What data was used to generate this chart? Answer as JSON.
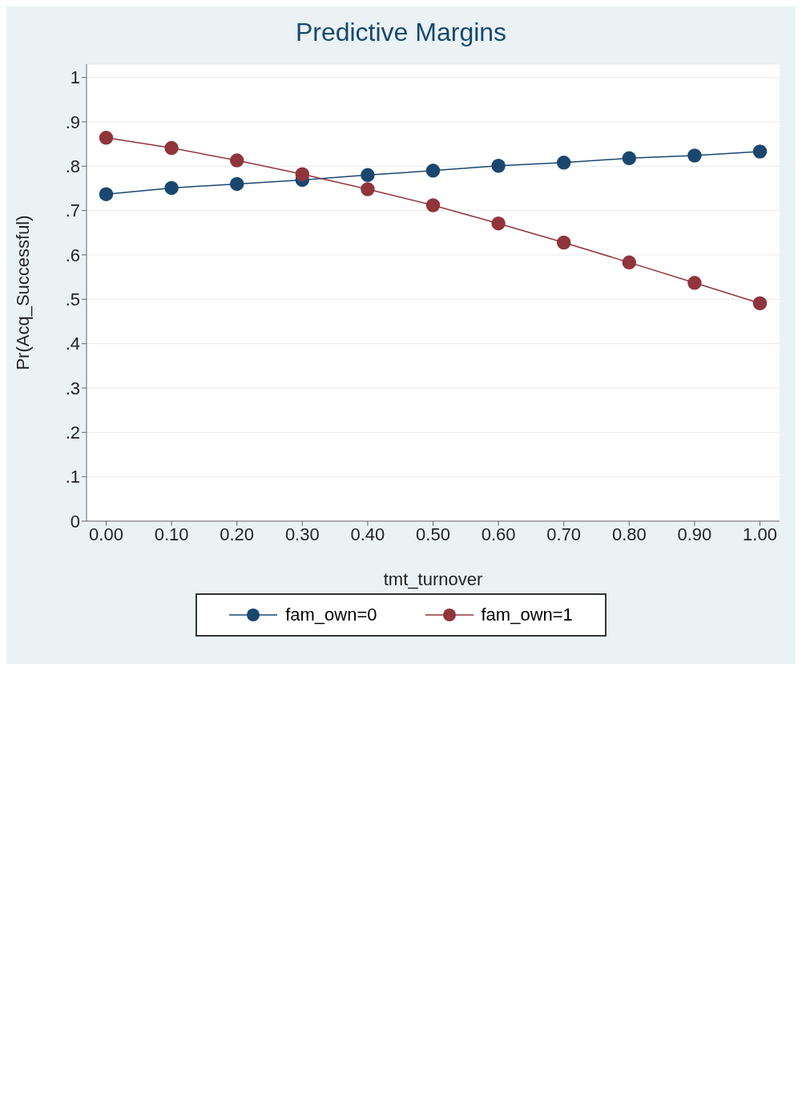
{
  "chart_data": {
    "type": "line",
    "title": "Predictive Margins",
    "xlabel": "tmt_turnover",
    "ylabel": "Pr(Acq_Successful)",
    "x": [
      0,
      0.1,
      0.2,
      0.3,
      0.4,
      0.5,
      0.6,
      0.7,
      0.8,
      0.9,
      1
    ],
    "series": [
      {
        "name": "fam_own=0",
        "color": "#1a476f",
        "values": [
          0.737,
          0.751,
          0.76,
          0.769,
          0.78,
          0.79,
          0.801,
          0.808,
          0.818,
          0.824,
          0.833
        ]
      },
      {
        "name": "fam_own=1",
        "color": "#90353b",
        "values": [
          0.864,
          0.841,
          0.813,
          0.782,
          0.748,
          0.712,
          0.671,
          0.628,
          0.583,
          0.537,
          0.491
        ]
      }
    ],
    "xlim": [
      -0.03,
      1.03
    ],
    "xticks": [
      {
        "value": 0,
        "label": "0.00"
      },
      {
        "value": 0.1,
        "label": "0.10"
      },
      {
        "value": 0.2,
        "label": "0.20"
      },
      {
        "value": 0.3,
        "label": "0.30"
      },
      {
        "value": 0.4,
        "label": "0.40"
      },
      {
        "value": 0.5,
        "label": "0.50"
      },
      {
        "value": 0.6,
        "label": "0.60"
      },
      {
        "value": 0.7,
        "label": "0.70"
      },
      {
        "value": 0.8,
        "label": "0.80"
      },
      {
        "value": 0.9,
        "label": "0.90"
      },
      {
        "value": 1,
        "label": "1.00"
      }
    ],
    "ylim": [
      0,
      1.03
    ],
    "yticks": [
      0,
      {
        "value": 0.1,
        "label": ".1"
      },
      {
        "value": 0.2,
        "label": ".2"
      },
      {
        "value": 0.3,
        "label": ".3"
      },
      {
        "value": 0.4,
        "label": ".4"
      },
      {
        "value": 0.5,
        "label": ".5"
      },
      {
        "value": 0.6,
        "label": ".6"
      },
      {
        "value": 0.7,
        "label": ".7"
      },
      {
        "value": 0.8,
        "label": ".8"
      },
      {
        "value": 0.9,
        "label": ".9"
      },
      1
    ],
    "grid": "y",
    "legend": "bottom",
    "marker": "circle",
    "line_style": "solid"
  }
}
